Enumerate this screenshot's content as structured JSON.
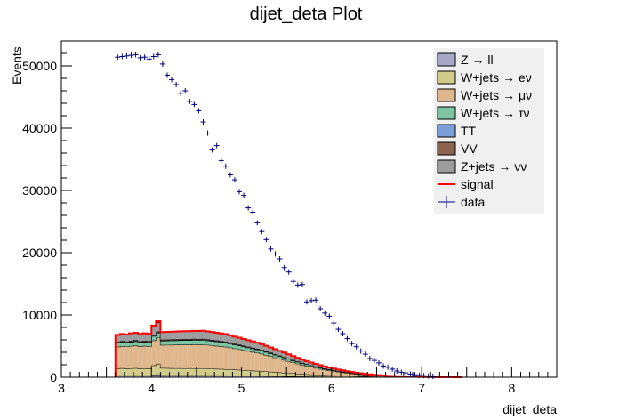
{
  "chart_data": {
    "type": "bar",
    "title": "dijet_deta Plot",
    "xlabel": "dijet_deta",
    "ylabel": "Events",
    "xlim": [
      3,
      8.5
    ],
    "ylim": [
      0,
      54000
    ],
    "x_ticks": [
      3,
      4,
      5,
      6,
      7,
      8
    ],
    "y_ticks": [
      0,
      10000,
      20000,
      30000,
      40000,
      50000
    ],
    "bin_width": 0.05,
    "stack_x": [
      3.6,
      3.65,
      3.7,
      3.75,
      3.8,
      3.85,
      3.9,
      3.95,
      4.0,
      4.05,
      4.1,
      4.15,
      4.2,
      4.25,
      4.3,
      4.35,
      4.4,
      4.45,
      4.5,
      4.55,
      4.6,
      4.65,
      4.7,
      4.75,
      4.8,
      4.85,
      4.9,
      4.95,
      5.0,
      5.05,
      5.1,
      5.15,
      5.2,
      5.25,
      5.3,
      5.35,
      5.4,
      5.45,
      5.5,
      5.55,
      5.6,
      5.65,
      5.7,
      5.75,
      5.8,
      5.85,
      5.9,
      5.95,
      6.0,
      6.05,
      6.1,
      6.15,
      6.2,
      6.25,
      6.3,
      6.35,
      6.4,
      6.45,
      6.5,
      6.55,
      6.6,
      6.65,
      6.7,
      6.75,
      6.8,
      6.85,
      6.9,
      6.95,
      7.0,
      7.05,
      7.1,
      7.15,
      7.2,
      7.25,
      7.3,
      7.35,
      7.4
    ],
    "series": [
      {
        "name": "Z → ll",
        "color": "#a8a8c8",
        "values": [
          300,
          300,
          300,
          300,
          310,
          300,
          300,
          300,
          400,
          450,
          330,
          320,
          320,
          320,
          320,
          320,
          320,
          320,
          320,
          320,
          310,
          310,
          300,
          300,
          290,
          280,
          270,
          260,
          250,
          240,
          230,
          220,
          210,
          200,
          190,
          180,
          170,
          160,
          150,
          140,
          130,
          120,
          110,
          100,
          95,
          90,
          85,
          80,
          75,
          70,
          65,
          60,
          55,
          50,
          45,
          40,
          35,
          30,
          28,
          25,
          22,
          20,
          18,
          15,
          12,
          10,
          9,
          8,
          7,
          6,
          5,
          4,
          3,
          3,
          2,
          2,
          1
        ]
      },
      {
        "name": "W+jets → eν",
        "color": "#d2cc8c",
        "values": [
          1100,
          1150,
          1100,
          1120,
          1150,
          1100,
          1120,
          1100,
          1500,
          1700,
          1150,
          1150,
          1130,
          1120,
          1120,
          1100,
          1120,
          1100,
          1100,
          1100,
          1080,
          1060,
          1040,
          1020,
          1000,
          980,
          950,
          920,
          890,
          860,
          830,
          800,
          760,
          720,
          680,
          640,
          600,
          560,
          520,
          480,
          440,
          400,
          370,
          340,
          310,
          280,
          260,
          240,
          220,
          200,
          180,
          160,
          140,
          125,
          110,
          95,
          85,
          75,
          65,
          55,
          48,
          42,
          36,
          30,
          26,
          22,
          18,
          15,
          12,
          10,
          8,
          6,
          5,
          4,
          3,
          2,
          1
        ]
      },
      {
        "name": "W+jets → μν",
        "color": "#deb78c",
        "values": [
          3500,
          3550,
          3520,
          3600,
          3650,
          3550,
          3600,
          3580,
          4000,
          4200,
          3700,
          3720,
          3750,
          3780,
          3800,
          3820,
          3800,
          3850,
          3820,
          3850,
          3800,
          3750,
          3700,
          3650,
          3600,
          3500,
          3400,
          3300,
          3200,
          3100,
          3000,
          2900,
          2800,
          2650,
          2500,
          2350,
          2200,
          2050,
          1900,
          1750,
          1600,
          1450,
          1320,
          1200,
          1080,
          960,
          860,
          770,
          680,
          600,
          530,
          460,
          400,
          345,
          300,
          255,
          215,
          180,
          150,
          125,
          105,
          88,
          73,
          60,
          50,
          40,
          32,
          26,
          20,
          16,
          12,
          9,
          7,
          5,
          4,
          3,
          2
        ]
      },
      {
        "name": "W+jets → τν",
        "color": "#7fc4a2",
        "values": [
          600,
          620,
          610,
          630,
          640,
          620,
          630,
          620,
          700,
          750,
          650,
          660,
          670,
          680,
          680,
          690,
          690,
          700,
          700,
          700,
          690,
          680,
          670,
          660,
          650,
          630,
          610,
          590,
          570,
          550,
          530,
          510,
          490,
          465,
          440,
          415,
          390,
          365,
          340,
          315,
          290,
          265,
          245,
          225,
          205,
          185,
          165,
          148,
          132,
          117,
          103,
          90,
          78,
          67,
          57,
          48,
          40,
          33,
          27,
          22,
          18,
          15,
          12,
          10,
          8,
          6,
          5,
          4,
          3,
          2,
          2,
          1,
          1,
          1,
          0,
          0,
          0
        ]
      },
      {
        "name": "TT",
        "color": "#7b9fd8",
        "values": [
          80,
          80,
          80,
          80,
          80,
          80,
          80,
          80,
          90,
          90,
          80,
          80,
          80,
          80,
          80,
          80,
          80,
          80,
          80,
          80,
          80,
          80,
          78,
          76,
          74,
          72,
          70,
          68,
          66,
          64,
          62,
          60,
          57,
          54,
          51,
          48,
          45,
          42,
          39,
          36,
          33,
          30,
          27,
          24,
          22,
          20,
          18,
          16,
          14,
          12,
          10,
          9,
          8,
          7,
          6,
          5,
          4,
          3,
          3,
          2,
          2,
          1,
          1,
          1,
          1,
          0,
          0,
          0,
          0,
          0,
          0,
          0,
          0,
          0,
          0,
          0,
          0
        ]
      },
      {
        "name": "VV",
        "color": "#8c6450",
        "values": [
          120,
          120,
          120,
          120,
          120,
          120,
          120,
          120,
          130,
          140,
          120,
          120,
          120,
          120,
          120,
          120,
          120,
          120,
          120,
          120,
          118,
          116,
          114,
          112,
          110,
          106,
          102,
          98,
          94,
          90,
          86,
          82,
          78,
          74,
          70,
          66,
          62,
          58,
          54,
          50,
          46,
          42,
          38,
          35,
          32,
          29,
          26,
          23,
          20,
          18,
          16,
          14,
          12,
          10,
          9,
          8,
          7,
          6,
          5,
          4,
          3,
          3,
          2,
          2,
          1,
          1,
          1,
          1,
          0,
          0,
          0,
          0,
          0,
          0,
          0,
          0,
          0
        ]
      },
      {
        "name": "Z+jets → νν",
        "color": "#9c9c9c",
        "values": [
          1100,
          1130,
          1120,
          1150,
          1170,
          1140,
          1160,
          1150,
          1400,
          1500,
          1200,
          1210,
          1220,
          1230,
          1240,
          1250,
          1250,
          1260,
          1260,
          1270,
          1260,
          1240,
          1220,
          1200,
          1180,
          1150,
          1120,
          1090,
          1060,
          1030,
          1000,
          960,
          920,
          880,
          840,
          800,
          760,
          710,
          660,
          610,
          560,
          510,
          465,
          420,
          380,
          340,
          305,
          275,
          245,
          218,
          193,
          170,
          150,
          131,
          114,
          99,
          85,
          73,
          62,
          52,
          44,
          37,
          31,
          26,
          21,
          17,
          14,
          11,
          9,
          7,
          5,
          4,
          3,
          2,
          2,
          1,
          1
        ]
      }
    ],
    "signal": {
      "name": "signal",
      "color": "#ff0000",
      "values": [
        6800,
        6950,
        6850,
        7050,
        7150,
        6950,
        7050,
        6990,
        8300,
        9000,
        7250,
        7280,
        7310,
        7340,
        7370,
        7400,
        7400,
        7450,
        7440,
        7470,
        7360,
        7260,
        7140,
        7030,
        6920,
        6740,
        6540,
        6350,
        6150,
        5950,
        5760,
        5550,
        5330,
        5060,
        4790,
        4510,
        4240,
        3960,
        3680,
        3390,
        3110,
        2830,
        2590,
        2360,
        2140,
        1920,
        1730,
        1560,
        1390,
        1240,
        1100,
        960,
        840,
        735,
        640,
        550,
        470,
        400,
        340,
        285,
        240,
        200,
        170,
        140,
        115,
        92,
        74,
        60,
        47,
        37,
        29,
        22,
        17,
        13,
        10,
        7,
        5
      ]
    },
    "data": {
      "name": "data",
      "color": "#000080",
      "x": [
        3.625,
        3.675,
        3.725,
        3.775,
        3.825,
        3.875,
        3.925,
        3.975,
        4.025,
        4.075,
        4.125,
        4.175,
        4.225,
        4.275,
        4.325,
        4.375,
        4.425,
        4.475,
        4.525,
        4.575,
        4.625,
        4.675,
        4.725,
        4.775,
        4.825,
        4.875,
        4.925,
        4.975,
        5.025,
        5.075,
        5.125,
        5.175,
        5.225,
        5.275,
        5.325,
        5.375,
        5.425,
        5.475,
        5.525,
        5.575,
        5.625,
        5.675,
        5.725,
        5.775,
        5.825,
        5.875,
        5.925,
        5.975,
        6.025,
        6.075,
        6.125,
        6.175,
        6.225,
        6.275,
        6.325,
        6.375,
        6.425,
        6.475,
        6.525,
        6.575,
        6.625,
        6.675,
        6.725,
        6.775,
        6.825,
        6.875,
        6.925,
        6.975,
        7.025,
        7.075,
        7.125
      ],
      "y": [
        51400,
        51500,
        51600,
        51700,
        51800,
        51300,
        51400,
        51100,
        51500,
        51800,
        50300,
        48500,
        47800,
        47000,
        45600,
        46000,
        44300,
        43800,
        42800,
        41000,
        39200,
        36500,
        37200,
        34800,
        33900,
        32500,
        31700,
        29800,
        29200,
        27200,
        26500,
        24800,
        23400,
        22100,
        20600,
        19800,
        19000,
        17600,
        16900,
        15400,
        14800,
        14900,
        12100,
        12300,
        12400,
        11000,
        10300,
        9800,
        8700,
        7700,
        7000,
        6200,
        5400,
        4900,
        4200,
        3700,
        3000,
        2700,
        2300,
        1800,
        1600,
        1300,
        1000,
        800,
        700,
        500,
        400,
        300,
        250,
        200,
        150
      ]
    },
    "legend_position": "top-right",
    "grid": false
  }
}
